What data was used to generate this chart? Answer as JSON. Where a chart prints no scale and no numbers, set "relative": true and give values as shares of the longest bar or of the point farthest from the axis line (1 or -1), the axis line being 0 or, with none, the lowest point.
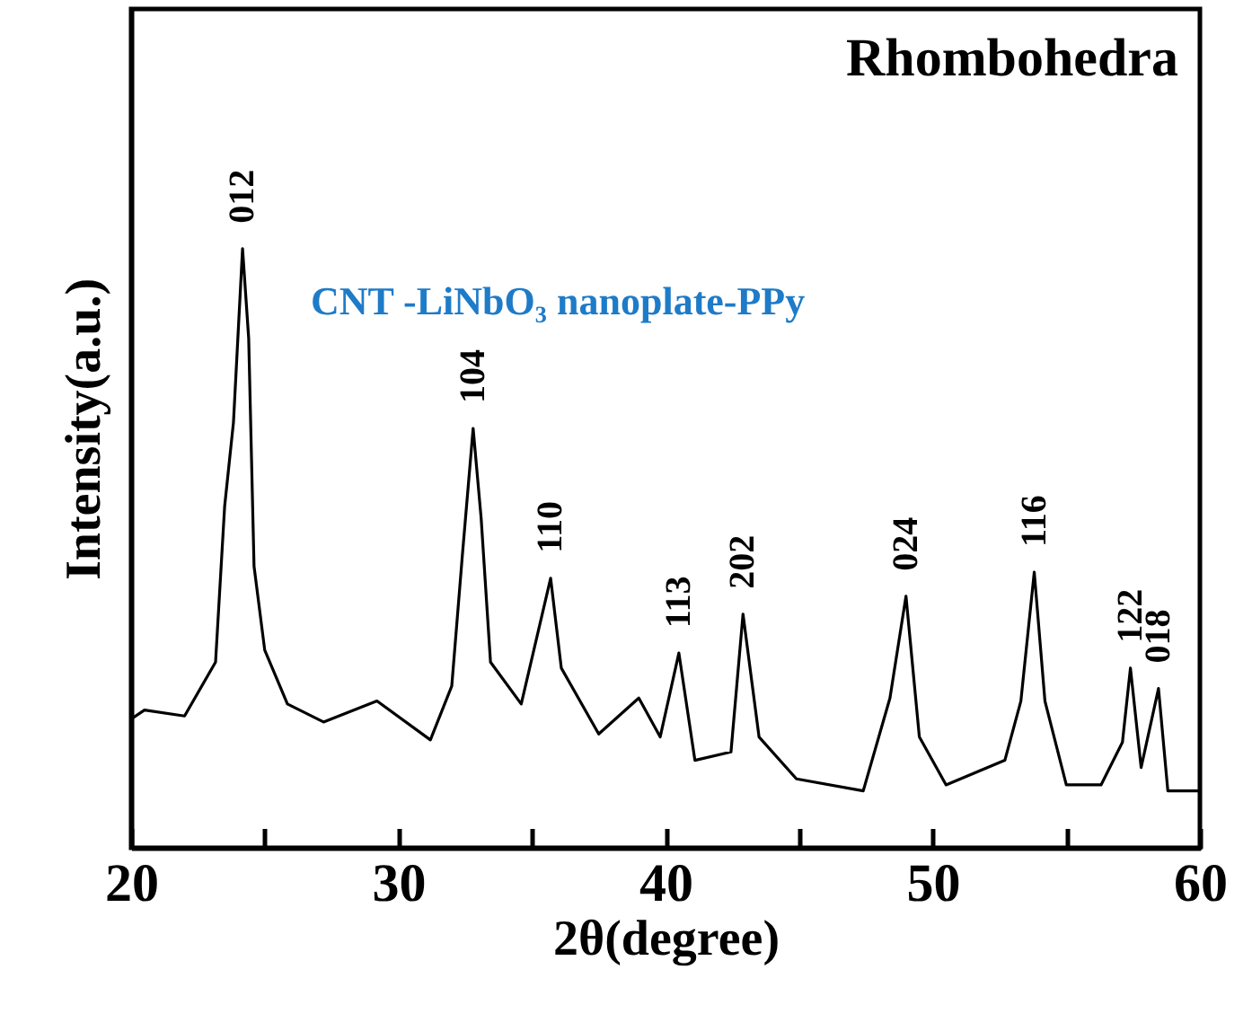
{
  "chart_data": {
    "type": "line",
    "relative": true,
    "xlabel": "2θ(degree)",
    "ylabel": "Intensity(a.u.)",
    "xlim": [
      20,
      60
    ],
    "xticks": [
      20,
      {
        "value": 25,
        "label": null
      },
      30,
      {
        "value": 35,
        "label": null
      },
      40,
      {
        "value": 45,
        "label": null
      },
      50,
      {
        "value": 55,
        "label": null
      },
      60
    ],
    "x": [
      20,
      20.5,
      22.0,
      23.16,
      23.5,
      23.83,
      24.17,
      24.4,
      24.6,
      25.0,
      25.85,
      27.2,
      29.2,
      31.2,
      32.0,
      32.4,
      32.8,
      33.1,
      33.45,
      34.6,
      35.7,
      36.1,
      37.5,
      39.0,
      39.8,
      40.5,
      41.1,
      42.45,
      42.9,
      43.5,
      44.9,
      47.4,
      48.4,
      49.0,
      49.5,
      50.5,
      52.7,
      53.3,
      53.8,
      54.2,
      55.0,
      56.3,
      57.1,
      57.4,
      57.8,
      58.45,
      58.8,
      60
    ],
    "series": [
      {
        "color": "#000000",
        "values": [
          0.215,
          0.23,
          0.22,
          0.31,
          0.57,
          0.71,
          1.0,
          0.85,
          0.47,
          0.33,
          0.24,
          0.21,
          0.245,
          0.18,
          0.27,
          0.49,
          0.7,
          0.55,
          0.31,
          0.24,
          0.45,
          0.3,
          0.19,
          0.25,
          0.185,
          0.325,
          0.146,
          0.16,
          0.39,
          0.185,
          0.115,
          0.095,
          0.25,
          0.42,
          0.185,
          0.105,
          0.146,
          0.245,
          0.46,
          0.245,
          0.105,
          0.105,
          0.176,
          0.3,
          0.134,
          0.266,
          0.095,
          0.095
        ]
      }
    ],
    "annotations": [
      "Rhombohedra",
      "CNT -LiNbO₃ nanoplate-PPy",
      {
        "text": "012",
        "x": 24.17,
        "y": 1.0
      },
      {
        "text": "104",
        "x": 32.8,
        "y": 0.7
      },
      {
        "text": "110",
        "x": 35.7,
        "y": 0.45
      },
      {
        "text": "113",
        "x": 40.5,
        "y": 0.325
      },
      {
        "text": "202",
        "x": 42.9,
        "y": 0.39
      },
      {
        "text": "024",
        "x": 49.0,
        "y": 0.42
      },
      {
        "text": "116",
        "x": 53.8,
        "y": 0.46
      },
      {
        "text": "122",
        "x": 57.4,
        "y": 0.3
      },
      {
        "text": "018",
        "x": 58.45,
        "y": 0.266
      }
    ]
  }
}
